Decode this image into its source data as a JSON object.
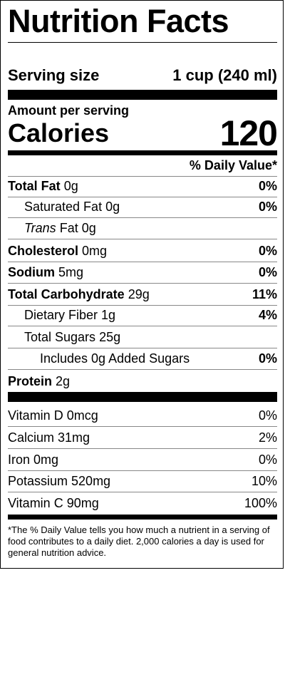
{
  "title": "Nutrition Facts",
  "serving": {
    "label": "Serving size",
    "value": "1 cup (240 ml)"
  },
  "amount_per_serving": "Amount per serving",
  "calories": {
    "label": "Calories",
    "value": "120"
  },
  "dv_header": "% Daily Value*",
  "nutrients": {
    "total_fat": {
      "label": "Total Fat",
      "amount": "0g",
      "dv": "0%"
    },
    "saturated_fat": {
      "label": "Saturated Fat",
      "amount": "0g",
      "dv": "0%"
    },
    "trans_fat": {
      "label_italic": "Trans",
      "label": "Fat",
      "amount": "0g"
    },
    "cholesterol": {
      "label": "Cholesterol",
      "amount": "0mg",
      "dv": "0%"
    },
    "sodium": {
      "label": "Sodium",
      "amount": "5mg",
      "dv": "0%"
    },
    "total_carb": {
      "label": "Total Carbohydrate",
      "amount": "29g",
      "dv": "11%"
    },
    "fiber": {
      "label": "Dietary Fiber",
      "amount": "1g",
      "dv": "4%"
    },
    "total_sugars": {
      "label": "Total Sugars",
      "amount": "25g"
    },
    "added_sugars": {
      "label": "Includes 0g Added Sugars",
      "dv": "0%"
    },
    "protein": {
      "label": "Protein",
      "amount": "2g"
    }
  },
  "vitamins": [
    {
      "label": "Vitamin D 0mcg",
      "dv": "0%"
    },
    {
      "label": "Calcium 31mg",
      "dv": "2%"
    },
    {
      "label": "Iron 0mg",
      "dv": "0%"
    },
    {
      "label": "Potassium 520mg",
      "dv": "10%"
    },
    {
      "label": "Vitamin C 90mg",
      "dv": "100%"
    }
  ],
  "footnote": "*The % Daily Value tells you how much a nutrient in a serving of food contributes to a daily diet. 2,000 calories a day is used for general nutrition advice."
}
